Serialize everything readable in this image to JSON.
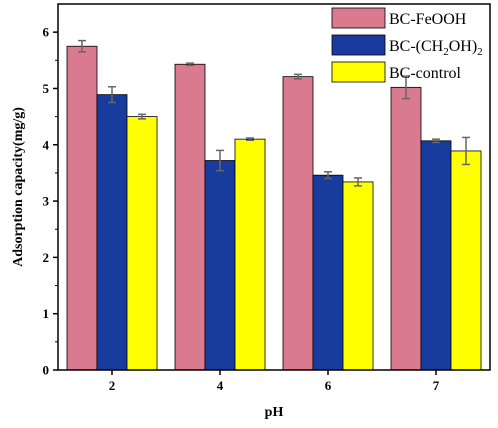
{
  "chart_data": {
    "type": "bar",
    "xlabel": "pH",
    "ylabel": "Adsorption capacity(mg/g)",
    "categories": [
      "2",
      "4",
      "6",
      "7"
    ],
    "ylim": [
      0,
      6.5
    ],
    "yticks": [
      0,
      1,
      2,
      3,
      4,
      5,
      6
    ],
    "grid": false,
    "error_bars": true,
    "legend_position": "top-right",
    "series": [
      {
        "name": "BC-FeOOH",
        "legend_main": "BC-FeOOH",
        "legend_sub": "",
        "legend_tail": "",
        "color": "#d97a8e",
        "values": [
          5.75,
          5.43,
          5.21,
          5.02
        ],
        "errors": [
          0.1,
          0.02,
          0.04,
          0.2
        ]
      },
      {
        "name": "BC-(CH2OH)2",
        "legend_main": "BC-(CH",
        "legend_sub": "2",
        "legend_mid": "OH)",
        "legend_tail": "2",
        "color": "#173c9e",
        "values": [
          4.89,
          3.72,
          3.46,
          4.07
        ],
        "errors": [
          0.14,
          0.18,
          0.06,
          0.03
        ]
      },
      {
        "name": "BC-control",
        "legend_main": "BC-control",
        "legend_sub": "",
        "legend_tail": "",
        "color": "#ffff00",
        "values": [
          4.5,
          4.1,
          3.34,
          3.89
        ],
        "errors": [
          0.04,
          0.02,
          0.07,
          0.24
        ]
      }
    ]
  }
}
